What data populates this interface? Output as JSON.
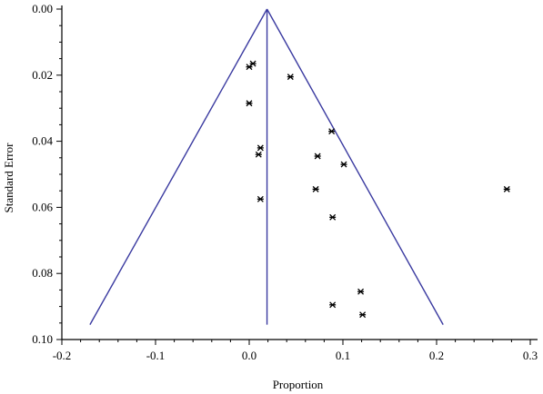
{
  "chart_data": {
    "type": "scatter",
    "title": "",
    "xlabel": "Proportion",
    "ylabel": "Standard Error",
    "xlim": [
      -0.2,
      0.3
    ],
    "ylim": [
      0.0,
      0.1
    ],
    "y_inverted": true,
    "x_ticks": [
      "-0.2",
      "-0.1",
      "0.0",
      "0.1",
      "0.2",
      "0.3"
    ],
    "y_ticks": [
      "0.00",
      "0.02",
      "0.04",
      "0.06",
      "0.08",
      "0.10"
    ],
    "grid": false,
    "legend": "none",
    "marker": "x",
    "line_color": "#3a3aa0",
    "funnel": {
      "center": 0.019,
      "apex": [
        0.019,
        0.0
      ],
      "left_base": [
        -0.17,
        0.0955
      ],
      "right_base": [
        0.207,
        0.0955
      ]
    },
    "points": [
      {
        "x": 0.0,
        "y": 0.0175
      },
      {
        "x": 0.004,
        "y": 0.0165
      },
      {
        "x": 0.044,
        "y": 0.0205
      },
      {
        "x": 0.0,
        "y": 0.0285
      },
      {
        "x": 0.088,
        "y": 0.037
      },
      {
        "x": 0.012,
        "y": 0.042
      },
      {
        "x": 0.01,
        "y": 0.044
      },
      {
        "x": 0.073,
        "y": 0.0445
      },
      {
        "x": 0.101,
        "y": 0.047
      },
      {
        "x": 0.071,
        "y": 0.0545
      },
      {
        "x": 0.275,
        "y": 0.0545
      },
      {
        "x": 0.012,
        "y": 0.0575
      },
      {
        "x": 0.089,
        "y": 0.063
      },
      {
        "x": 0.119,
        "y": 0.0855
      },
      {
        "x": 0.089,
        "y": 0.0895
      },
      {
        "x": 0.121,
        "y": 0.0925
      }
    ]
  }
}
